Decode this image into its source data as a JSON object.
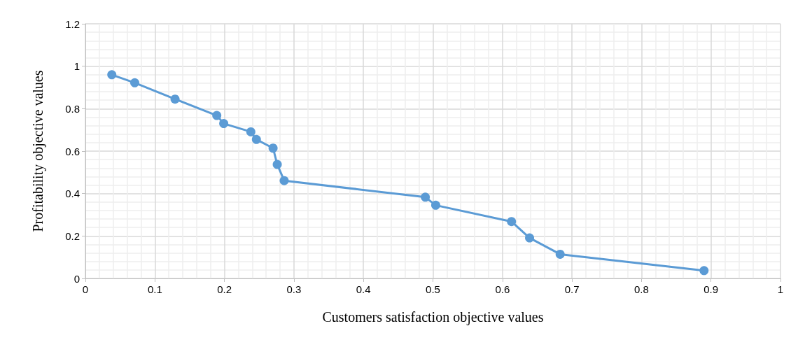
{
  "chart_data": {
    "type": "line",
    "xlabel": "Customers satisfaction objective values",
    "ylabel": "Profitability objective values",
    "x": [
      0.038,
      0.071,
      0.129,
      0.189,
      0.199,
      0.238,
      0.246,
      0.27,
      0.276,
      0.286,
      0.489,
      0.504,
      0.613,
      0.639,
      0.683,
      0.89
    ],
    "series": [
      {
        "color": "#5b9bd5",
        "values": [
          0.96,
          0.922,
          0.845,
          0.768,
          0.73,
          0.691,
          0.655,
          0.614,
          0.537,
          0.461,
          0.383,
          0.345,
          0.268,
          0.191,
          0.114,
          0.037
        ]
      }
    ],
    "xlim": [
      0,
      1
    ],
    "xticks": [
      0,
      0.1,
      0.2,
      0.3,
      0.4,
      0.5,
      0.6,
      0.7,
      0.8,
      0.9,
      1
    ],
    "ylim": [
      0,
      1.2
    ],
    "yticks": [
      0,
      0.2,
      0.4,
      0.6,
      0.8,
      1,
      1.2
    ],
    "grid": true,
    "marker": "circle",
    "line_style": "solid"
  }
}
